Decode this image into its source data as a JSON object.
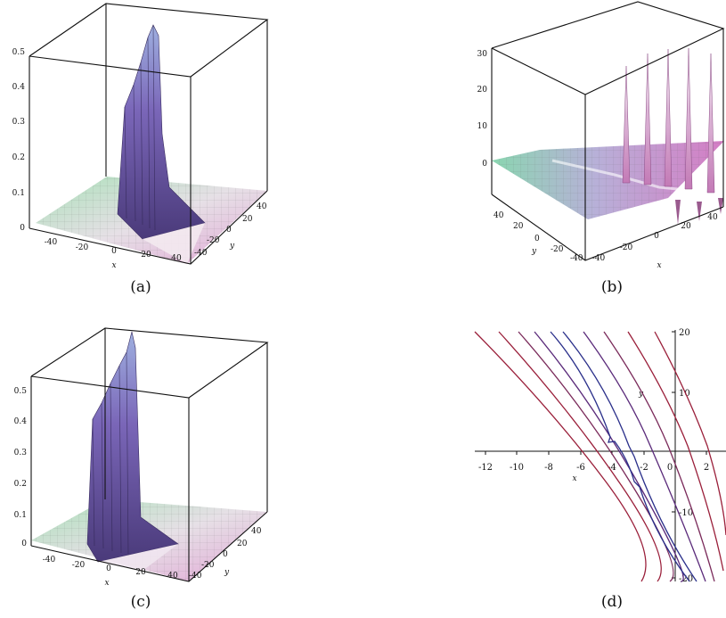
{
  "figure": {
    "panels": [
      {
        "caption": "(a)",
        "z_ticks": [
          "0",
          "0.1",
          "0.2",
          "0.3",
          "0.4",
          "0.5"
        ],
        "x_ticks": [
          "-40",
          "-20",
          "0",
          "20",
          "40"
        ],
        "y_ticks": [
          "40",
          "20",
          "0",
          "-20",
          "-40"
        ],
        "x_label": "x",
        "y_label": "y"
      },
      {
        "caption": "(b)",
        "z_ticks": [
          "0",
          "10",
          "20",
          "30"
        ],
        "x_ticks": [
          "-40",
          "-20",
          "0",
          "20",
          "40"
        ],
        "y_ticks": [
          "40",
          "20",
          "0",
          "-20",
          "-40"
        ],
        "x_label": "x",
        "y_label": "y"
      },
      {
        "caption": "(c)",
        "z_ticks": [
          "0",
          "0.1",
          "0.2",
          "0.3",
          "0.4",
          "0.5"
        ],
        "x_ticks": [
          "-40",
          "-20",
          "0",
          "20",
          "40"
        ],
        "y_ticks": [
          "40",
          "20",
          "0",
          "-20",
          "-40"
        ],
        "x_label": "x",
        "y_label": "y"
      },
      {
        "caption": "(d)",
        "x_ticks": [
          "-12",
          "-10",
          "-8",
          "-6",
          "-4",
          "-2",
          "0",
          "2"
        ],
        "y_ticks": [
          "20",
          "10",
          "-10",
          "-20"
        ],
        "x_label": "x",
        "y_label": "y"
      }
    ]
  },
  "colors": {
    "frame": "#111111",
    "surface_green": "#9fd8b0",
    "surface_pink": "#e6a8d8",
    "wave_purple": "#6a4fa0",
    "contour_red": "#9a1f3a",
    "contour_blue": "#2a2f8a"
  }
}
